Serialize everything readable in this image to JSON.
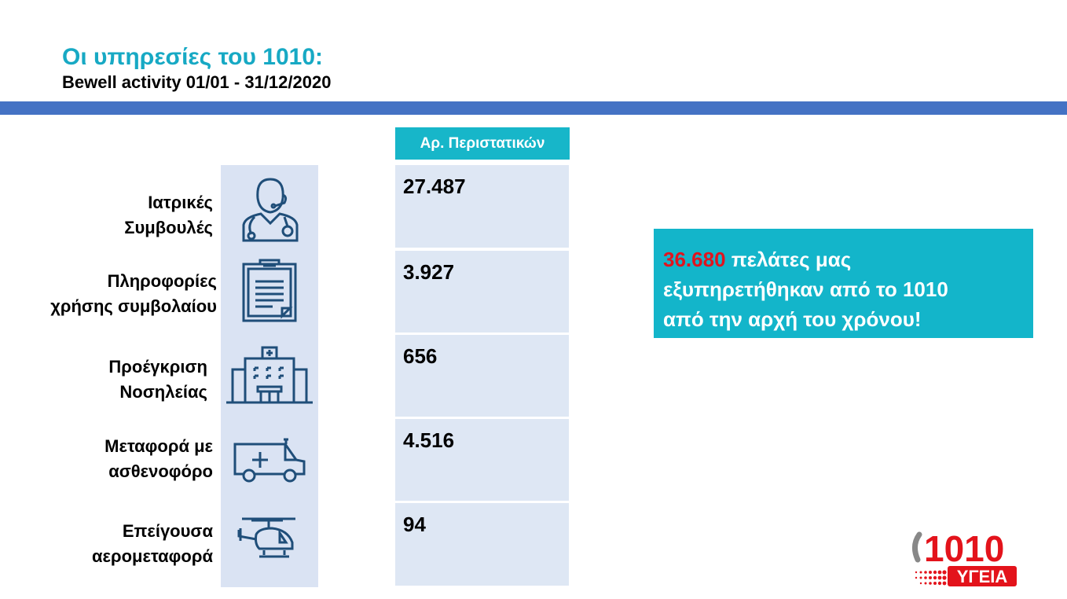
{
  "header": {
    "title": "Οι υπηρεσίες του 1010:",
    "subtitle": "Bewell activity 01/01 - 31/12/2020"
  },
  "table": {
    "column_header": "Αρ. Περιστατικών",
    "rows": [
      {
        "label_line1": "Ιατρικές",
        "label_line2": "Συμβουλές",
        "icon": "doctor-headset-icon",
        "value": "27.487"
      },
      {
        "label_line1": "Πληροφορίες",
        "label_line2": "χρήσης συμβολαίου",
        "icon": "clipboard-icon",
        "value": "3.927"
      },
      {
        "label_line1": "Προέγκριση",
        "label_line2": "Νοσηλείας",
        "icon": "hospital-icon",
        "value": "656"
      },
      {
        "label_line1": "Μεταφορά με",
        "label_line2": "ασθενοφόρο",
        "icon": "ambulance-icon",
        "value": "4.516"
      },
      {
        "label_line1": "Επείγουσα",
        "label_line2": "αερομεταφορά",
        "icon": "helicopter-icon",
        "value": "94"
      }
    ]
  },
  "callout": {
    "number": "36.680",
    "line1_rest": " πελάτες μας",
    "line2": "εξυπηρετήθηκαν από το 1010",
    "line3": "από την αρχή του χρόνου!"
  },
  "logo": {
    "number": "1010",
    "word": "ΥΓΕΙΑ"
  },
  "colors": {
    "title": "#17A9C4",
    "bar": "#4472C4",
    "panel": "#DAE3F3",
    "header_cell": "#17B6C9",
    "callout": "#13B5CA",
    "highlight": "#E0141E",
    "icon": "#1F4E79"
  }
}
